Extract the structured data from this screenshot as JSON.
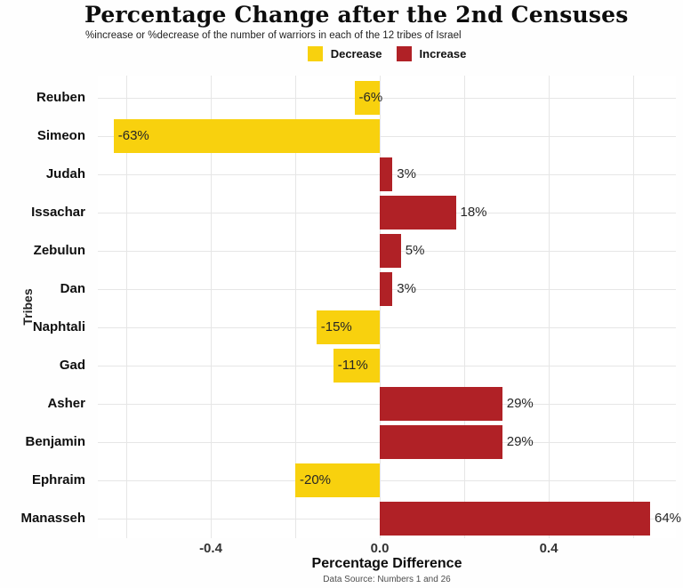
{
  "header": {
    "title": "Percentage Change after the 2nd Censuses",
    "subtitle": "%increase or %decrease of the number of warriors in each of the 12 tribes of Israel"
  },
  "legend": {
    "items": [
      {
        "label": "Decrease",
        "color": "#F8D10E"
      },
      {
        "label": "Increase",
        "color": "#B02126"
      }
    ]
  },
  "chart_data": {
    "type": "bar",
    "orientation": "horizontal",
    "title": "Percentage Change after the 2nd Censuses",
    "subtitle": "%increase or %decrease of the number of warriors in each of the 12 tribes of Israel",
    "categories": [
      "Reuben",
      "Simeon",
      "Judah",
      "Issachar",
      "Zebulun",
      "Dan",
      "Naphtali",
      "Gad",
      "Asher",
      "Benjamin",
      "Ephraim",
      "Manasseh"
    ],
    "values": [
      -6,
      -63,
      3,
      18,
      5,
      3,
      -15,
      -11,
      29,
      29,
      -20,
      64
    ],
    "labels": [
      "-6%",
      "-63%",
      "3%",
      "18%",
      "5%",
      "3%",
      "-15%",
      "-11%",
      "29%",
      "29%",
      "-20%",
      "64%"
    ],
    "decrease_color": "#F8D10E",
    "increase_color": "#B02126",
    "xlabel": "Percentage Difference",
    "ylabel": "Tribes",
    "x_ticks": [
      -0.4,
      0.0,
      0.4
    ],
    "x_tick_labels": [
      "-0.4",
      "0.0",
      "0.4"
    ],
    "xlim": [
      -0.67,
      0.7
    ],
    "grid": true,
    "legend_position": "top",
    "caption": "Data Source: Numbers 1 and 26"
  }
}
